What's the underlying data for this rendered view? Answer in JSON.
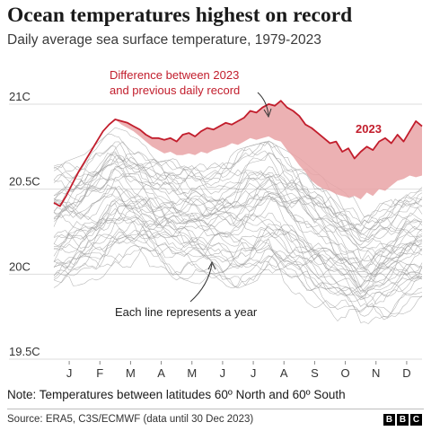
{
  "header": {
    "title": "Ocean temperatures highest on record",
    "subtitle": "Daily average sea surface temperature, 1979-2023"
  },
  "footer": {
    "note": "Note: Temperatures between latitudes 60º North and 60º South",
    "source": "Source: ERA5, C3S/ECMWF (data until 30 Dec 2023)",
    "brand": [
      "B",
      "B",
      "C"
    ]
  },
  "colors": {
    "record_line": "#c21d2c",
    "record_fill": "#e9a3a6",
    "history_lines": "#9a9a9a",
    "gridline": "#dddddd",
    "annotation_text": "#c21d2c",
    "text": "#333333"
  },
  "chart_data": {
    "type": "line",
    "title": "Ocean temperatures highest on record",
    "subtitle": "Daily average sea surface temperature, 1979-2023",
    "x_unit": "month",
    "x_ticks": [
      "J",
      "F",
      "M",
      "A",
      "M",
      "J",
      "J",
      "A",
      "S",
      "O",
      "N",
      "D"
    ],
    "x_range": [
      0,
      12
    ],
    "y_ticks": [
      {
        "value": 21.0,
        "label": "21C"
      },
      {
        "value": 20.5,
        "label": "20.5C"
      },
      {
        "value": 20.0,
        "label": "20C"
      },
      {
        "value": 19.5,
        "label": "19.5C"
      }
    ],
    "ylim": [
      19.5,
      21.1
    ],
    "grid": true,
    "series_2023": {
      "label": "2023",
      "x": [
        0.0,
        0.2,
        0.4,
        0.6,
        0.8,
        1.0,
        1.2,
        1.4,
        1.6,
        1.8,
        2.0,
        2.2,
        2.4,
        2.6,
        2.8,
        3.0,
        3.2,
        3.4,
        3.6,
        3.8,
        4.0,
        4.2,
        4.4,
        4.6,
        4.8,
        5.0,
        5.2,
        5.4,
        5.6,
        5.8,
        6.0,
        6.2,
        6.4,
        6.6,
        6.8,
        7.0,
        7.2,
        7.4,
        7.6,
        7.8,
        8.0,
        8.2,
        8.4,
        8.6,
        8.8,
        9.0,
        9.2,
        9.4,
        9.6,
        9.8,
        10.0,
        10.2,
        10.4,
        10.6,
        10.8,
        11.0,
        11.2,
        11.4,
        11.6,
        11.8,
        12.0
      ],
      "y": [
        20.42,
        20.4,
        20.46,
        20.53,
        20.6,
        20.66,
        20.72,
        20.78,
        20.84,
        20.88,
        20.91,
        20.9,
        20.89,
        20.87,
        20.85,
        20.82,
        20.8,
        20.8,
        20.79,
        20.8,
        20.78,
        20.82,
        20.83,
        20.81,
        20.84,
        20.86,
        20.85,
        20.87,
        20.89,
        20.88,
        20.9,
        20.92,
        20.96,
        20.95,
        20.98,
        21.0,
        20.99,
        21.02,
        20.98,
        20.96,
        20.93,
        20.88,
        20.86,
        20.83,
        20.8,
        20.77,
        20.78,
        20.72,
        20.74,
        20.68,
        20.72,
        20.75,
        20.73,
        20.78,
        20.8,
        20.77,
        20.82,
        20.78,
        20.84,
        20.9,
        20.87
      ]
    },
    "previous_record": {
      "x": [
        2.0,
        2.2,
        2.4,
        2.6,
        2.8,
        3.0,
        3.2,
        3.4,
        3.6,
        3.8,
        4.0,
        4.2,
        4.4,
        4.6,
        4.8,
        5.0,
        5.2,
        5.4,
        5.6,
        5.8,
        6.0,
        6.2,
        6.4,
        6.6,
        6.8,
        7.0,
        7.2,
        7.4,
        7.6,
        7.8,
        8.0,
        8.2,
        8.4,
        8.6,
        8.8,
        9.0,
        9.2,
        9.4,
        9.6,
        9.8,
        10.0,
        10.2,
        10.4,
        10.6,
        10.8,
        11.0,
        11.2,
        11.4,
        11.6,
        11.8,
        12.0
      ],
      "y": [
        20.91,
        20.88,
        20.86,
        20.84,
        20.81,
        20.78,
        20.75,
        20.73,
        20.71,
        20.72,
        20.7,
        20.7,
        20.71,
        20.7,
        20.72,
        20.71,
        20.73,
        20.74,
        20.75,
        20.77,
        20.76,
        20.78,
        20.8,
        20.79,
        20.8,
        20.81,
        20.79,
        20.78,
        20.73,
        20.69,
        20.64,
        20.6,
        20.55,
        20.52,
        20.5,
        20.49,
        20.47,
        20.46,
        20.45,
        20.46,
        20.44,
        20.48,
        20.46,
        20.5,
        20.49,
        20.52,
        20.55,
        20.56,
        20.58,
        20.57,
        20.58
      ]
    },
    "history_years": 44,
    "history_envelope": {
      "x": [
        0,
        1,
        2,
        3,
        4,
        5,
        6,
        7,
        8,
        9,
        10,
        11,
        12
      ],
      "high": [
        20.65,
        20.72,
        20.88,
        20.82,
        20.72,
        20.7,
        20.75,
        20.8,
        20.7,
        20.55,
        20.45,
        20.5,
        20.58
      ],
      "low": [
        19.88,
        19.93,
        19.98,
        19.98,
        19.95,
        19.92,
        19.9,
        19.97,
        19.85,
        19.72,
        19.62,
        19.72,
        19.8
      ]
    },
    "annotations": [
      {
        "id": "difference",
        "text": [
          "Difference between 2023",
          "and previous daily record"
        ],
        "points_to_month": 7.0
      },
      {
        "id": "label2023",
        "text": [
          "2023"
        ]
      },
      {
        "id": "each",
        "text": [
          "Each line represents a year"
        ],
        "points_to_month": 3.2
      }
    ]
  }
}
